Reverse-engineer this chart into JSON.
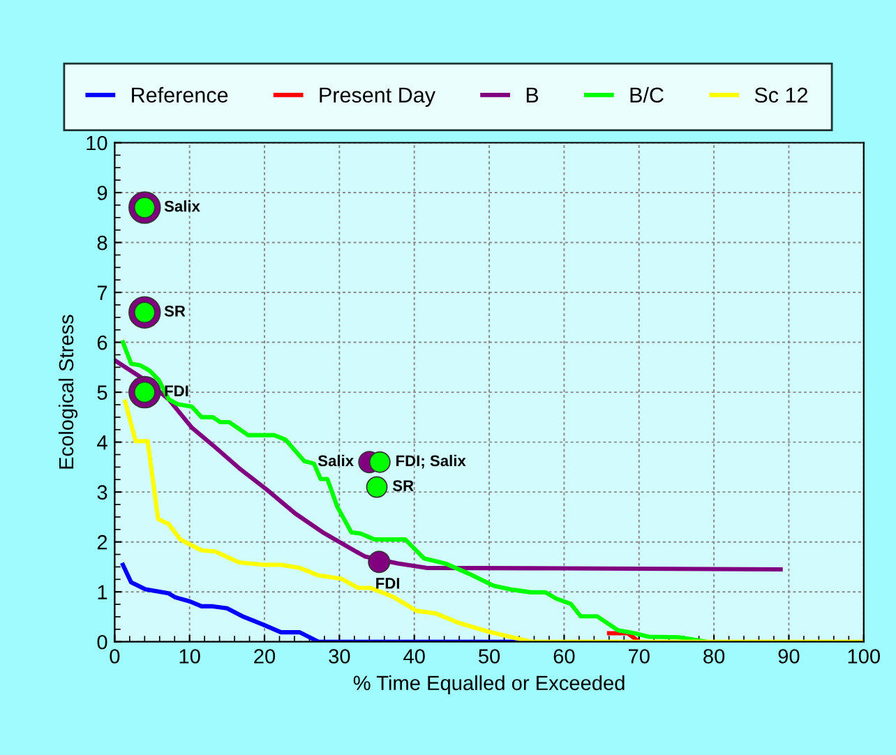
{
  "chart_data": {
    "type": "line",
    "xlabel": "% Time Equalled or Exceeded",
    "ylabel": "Ecological Stress",
    "xlim": [
      0,
      100
    ],
    "xticks": [
      0,
      10,
      20,
      30,
      40,
      50,
      60,
      70,
      80,
      90,
      100
    ],
    "ylim": [
      0,
      10
    ],
    "yticks": [
      0,
      1,
      2,
      3,
      4,
      5,
      6,
      7,
      8,
      9,
      10
    ],
    "grid": true,
    "legend": "top",
    "marker": "none",
    "line_style": "solid",
    "series": [
      {
        "name": "Reference",
        "color": "#0000ff",
        "x": [
          1.1,
          2.2,
          4.1,
          7.2,
          8.1,
          10,
          11.6,
          13.1,
          15,
          17.2,
          19.7,
          22.2,
          24.7,
          27.2,
          54
        ],
        "values": [
          1.54,
          1.19,
          1.05,
          0.97,
          0.89,
          0.81,
          0.71,
          0.71,
          0.67,
          0.5,
          0.35,
          0.19,
          0.19,
          0,
          0
        ]
      },
      {
        "name": "Present Day",
        "color": "#ff0000",
        "x": [
          66,
          68.5,
          70
        ],
        "values": [
          0.17,
          0.17,
          0
        ]
      },
      {
        "name": "B",
        "color": "#800080",
        "x": [
          0,
          4.1,
          7.2,
          10.3,
          13.4,
          16.6,
          20.3,
          24.1,
          27.8,
          31.6,
          33.4,
          37.8,
          41.6,
          60,
          88.9
        ],
        "values": [
          5.64,
          5.24,
          4.86,
          4.29,
          3.9,
          3.48,
          3.05,
          2.57,
          2.19,
          1.86,
          1.71,
          1.57,
          1.48,
          1.47,
          1.45
        ]
      },
      {
        "name": "B/C",
        "color": "#00ff00",
        "x": [
          1.1,
          2.2,
          3.4,
          4.7,
          5.9,
          7.2,
          8.4,
          10.3,
          11.6,
          13.1,
          14.1,
          15.3,
          17.8,
          21.3,
          22.8,
          25.3,
          26.6,
          27.5,
          28.4,
          29.7,
          31.6,
          32.8,
          34.7,
          38.8,
          41.3,
          44.1,
          47.5,
          50.6,
          52.8,
          55.6,
          57.5,
          59.0,
          60.9,
          62.2,
          64.4,
          67.2,
          69.4,
          71.3,
          75.3,
          79.1
        ],
        "values": [
          6.0,
          5.57,
          5.54,
          5.43,
          5.24,
          4.86,
          4.76,
          4.71,
          4.5,
          4.5,
          4.4,
          4.4,
          4.14,
          4.14,
          4.05,
          3.62,
          3.57,
          3.26,
          3.26,
          2.71,
          2.19,
          2.17,
          2.05,
          2.05,
          1.67,
          1.57,
          1.35,
          1.12,
          1.05,
          0.99,
          0.99,
          0.86,
          0.76,
          0.51,
          0.51,
          0.23,
          0.17,
          0.1,
          0.09,
          0
        ]
      },
      {
        "name": "Sc 12",
        "color": "#ffff00",
        "x": [
          1.4,
          2.8,
          4.4,
          5.8,
          7.2,
          8.75,
          11.6,
          13.4,
          16.6,
          20,
          22.2,
          24.7,
          27.2,
          30.3,
          32.5,
          34.1,
          37.2,
          40.3,
          42.8,
          45.9,
          49.7,
          55.6,
          100
        ],
        "values": [
          4.81,
          4.02,
          4.02,
          2.46,
          2.36,
          2.05,
          1.83,
          1.81,
          1.59,
          1.54,
          1.54,
          1.48,
          1.33,
          1.26,
          1.08,
          1.08,
          0.9,
          0.62,
          0.57,
          0.38,
          0.21,
          0,
          0
        ]
      },
      {
        "type": "scatter",
        "color": "#800080",
        "marker": "circle",
        "x": [
          4,
          4,
          4
        ],
        "values": [
          8.7,
          6.6,
          5.0
        ]
      },
      {
        "type": "scatter",
        "color": "#800080",
        "marker": "circle",
        "x": [
          34,
          35.3
        ],
        "values": [
          3.6,
          1.6
        ]
      },
      {
        "type": "scatter",
        "color": "#00ff00",
        "marker": "circle",
        "x": [
          4,
          4,
          4,
          35.4,
          35
        ],
        "values": [
          8.7,
          6.6,
          5.0,
          3.6,
          3.1
        ]
      }
    ],
    "annotations": [
      {
        "text": "Salix",
        "x": 4,
        "y": 8.7
      },
      {
        "text": "SR",
        "x": 4,
        "y": 6.6
      },
      {
        "text": "FDI",
        "x": 4,
        "y": 5.0
      },
      {
        "text": "Salix",
        "x": 34,
        "y": 3.6
      },
      {
        "text": "FDI; Salix",
        "x": 35.4,
        "y": 3.6
      },
      {
        "text": "SR",
        "x": 35,
        "y": 3.1
      },
      {
        "text": "FDI",
        "x": 35.3,
        "y": 1.6
      }
    ]
  }
}
